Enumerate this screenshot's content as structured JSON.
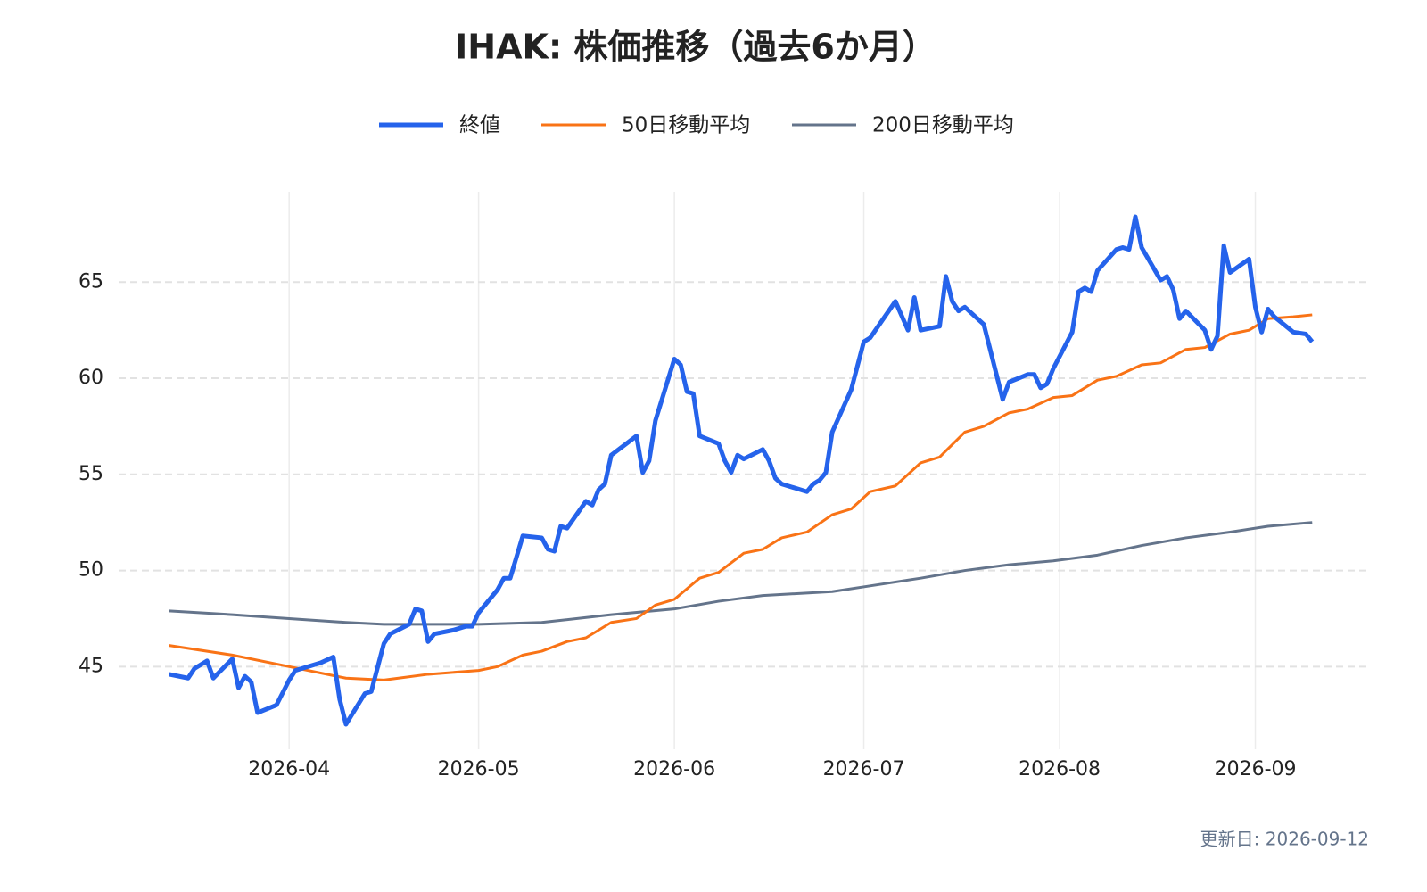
{
  "chart_data": {
    "type": "line",
    "title": "IHAK: 株価推移（過去6か月）",
    "x_unit": "day-of-year 2026",
    "xlim": [
      64,
      262
    ],
    "xticks": [
      {
        "value": 91,
        "label": "2026-04"
      },
      {
        "value": 121,
        "label": "2026-05"
      },
      {
        "value": 152,
        "label": "2026-06"
      },
      {
        "value": 182,
        "label": "2026-07"
      },
      {
        "value": 213,
        "label": "2026-08"
      },
      {
        "value": 244,
        "label": "2026-09"
      }
    ],
    "ylim": [
      40.7,
      69.7
    ],
    "yticks": [
      45,
      50,
      55,
      60,
      65
    ],
    "grid": true,
    "legend": "top",
    "series": [
      {
        "name": "終値",
        "color": "#2563eb",
        "width": 5,
        "x": [
          72,
          75,
          76,
          78,
          79,
          82,
          83,
          84,
          85,
          86,
          89,
          91,
          92,
          96,
          98,
          99,
          100,
          103,
          104,
          106,
          107,
          110,
          111,
          112,
          113,
          114,
          117,
          119,
          120,
          121,
          124,
          125,
          126,
          128,
          131,
          132,
          133,
          134,
          135,
          138,
          139,
          140,
          141,
          142,
          146,
          147,
          148,
          149,
          152,
          153,
          154,
          155,
          156,
          159,
          160,
          161,
          162,
          163,
          166,
          167,
          168,
          169,
          173,
          174,
          175,
          176,
          177,
          180,
          182,
          183,
          187,
          189,
          190,
          191,
          194,
          195,
          196,
          197,
          198,
          201,
          204,
          205,
          208,
          209,
          210,
          211,
          212,
          215,
          216,
          217,
          218,
          219,
          222,
          223,
          224,
          225,
          226,
          229,
          230,
          231,
          232,
          233,
          236,
          237,
          238,
          239,
          240,
          243,
          244,
          245,
          246,
          247,
          250,
          252,
          253
        ],
        "values": [
          44.6,
          44.4,
          44.9,
          45.3,
          44.4,
          45.4,
          43.9,
          44.5,
          44.2,
          42.6,
          43.0,
          44.3,
          44.8,
          45.2,
          45.5,
          43.3,
          42.0,
          43.6,
          43.7,
          46.2,
          46.7,
          47.2,
          48.0,
          47.9,
          46.3,
          46.7,
          46.9,
          47.1,
          47.1,
          47.8,
          49.0,
          49.6,
          49.6,
          51.8,
          51.7,
          51.1,
          51.0,
          52.3,
          52.2,
          53.6,
          53.4,
          54.2,
          54.5,
          56.0,
          57.0,
          55.1,
          55.7,
          57.8,
          61.0,
          60.7,
          59.3,
          59.2,
          57.0,
          56.6,
          55.7,
          55.1,
          56.0,
          55.8,
          56.3,
          55.7,
          54.8,
          54.5,
          54.1,
          54.5,
          54.7,
          55.1,
          57.2,
          59.4,
          61.9,
          62.1,
          64.0,
          62.5,
          64.2,
          62.5,
          62.7,
          65.3,
          64.0,
          63.5,
          63.7,
          62.8,
          58.9,
          59.8,
          60.2,
          60.2,
          59.5,
          59.7,
          60.5,
          62.4,
          64.5,
          64.7,
          64.5,
          65.6,
          66.7,
          66.8,
          66.7,
          68.4,
          66.8,
          65.1,
          65.3,
          64.6,
          63.1,
          63.5,
          62.5,
          61.5,
          62.2,
          66.9,
          65.5,
          66.2,
          63.7,
          62.4,
          63.6,
          63.2,
          62.4,
          62.3,
          61.9
        ]
      },
      {
        "name": "50日移動平均",
        "color": "#f97316",
        "width": 3,
        "x": [
          72,
          82,
          91,
          100,
          106,
          113,
          121,
          124,
          128,
          131,
          135,
          138,
          142,
          146,
          149,
          152,
          156,
          159,
          163,
          166,
          169,
          173,
          177,
          180,
          183,
          187,
          191,
          194,
          198,
          201,
          205,
          208,
          212,
          215,
          219,
          222,
          226,
          229,
          233,
          236,
          240,
          243,
          246,
          250,
          253
        ],
        "values": [
          46.1,
          45.6,
          45.0,
          44.4,
          44.3,
          44.6,
          44.8,
          45.0,
          45.6,
          45.8,
          46.3,
          46.5,
          47.3,
          47.5,
          48.2,
          48.5,
          49.6,
          49.9,
          50.9,
          51.1,
          51.7,
          52.0,
          52.9,
          53.2,
          54.1,
          54.4,
          55.6,
          55.9,
          57.2,
          57.5,
          58.2,
          58.4,
          59.0,
          59.1,
          59.9,
          60.1,
          60.7,
          60.8,
          61.5,
          61.6,
          62.3,
          62.5,
          63.1,
          63.2,
          63.3
        ]
      },
      {
        "name": "200日移動平均",
        "color": "#64748b",
        "width": 3,
        "x": [
          72,
          82,
          91,
          100,
          106,
          121,
          131,
          142,
          152,
          159,
          166,
          177,
          183,
          191,
          198,
          205,
          212,
          219,
          226,
          233,
          240,
          246,
          253
        ],
        "values": [
          47.9,
          47.7,
          47.5,
          47.3,
          47.2,
          47.2,
          47.3,
          47.7,
          48.0,
          48.4,
          48.7,
          48.9,
          49.2,
          49.6,
          50.0,
          50.3,
          50.5,
          50.8,
          51.3,
          51.7,
          52.0,
          52.3,
          52.5
        ]
      }
    ],
    "footer": "更新日: 2026-09-12"
  }
}
